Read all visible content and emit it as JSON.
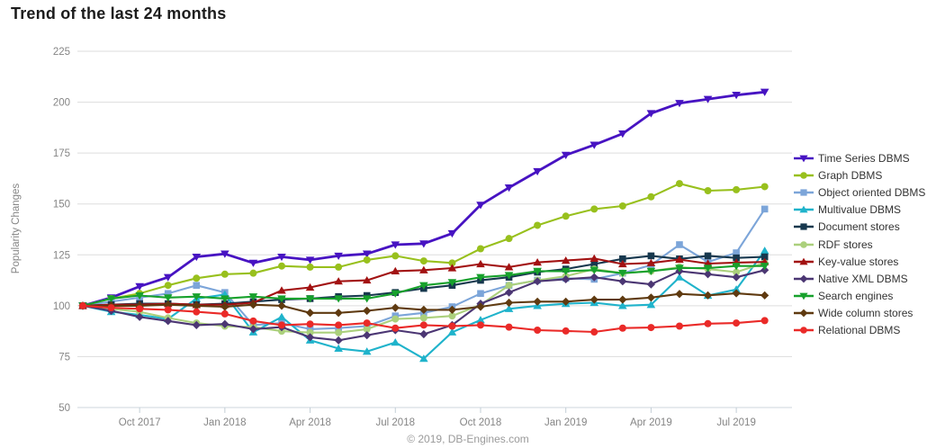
{
  "header": {
    "title": "Trend of the last 24 months"
  },
  "footer": {
    "copyright": "© 2019, DB-Engines.com"
  },
  "chart_data": {
    "type": "line",
    "title": "Trend of the last 24 months",
    "xlabel": "",
    "ylabel": "Popularity Changes",
    "ylim": [
      50,
      225
    ],
    "y_ticks": [
      225,
      200,
      175,
      150,
      125,
      100,
      75,
      50
    ],
    "grid": "horizontal",
    "legend_position": "right",
    "x_tick_labels": [
      "Oct 2017",
      "Jan 2018",
      "Apr 2018",
      "Jul 2018",
      "Oct 2018",
      "Jan 2019",
      "Apr 2019",
      "Jul 2019"
    ],
    "x_tick_indices": [
      2,
      5,
      8,
      11,
      14,
      17,
      20,
      23
    ],
    "x": [
      "Aug 2017",
      "Sep 2017",
      "Oct 2017",
      "Nov 2017",
      "Dec 2017",
      "Jan 2018",
      "Feb 2018",
      "Mar 2018",
      "Apr 2018",
      "May 2018",
      "Jun 2018",
      "Jul 2018",
      "Aug 2018",
      "Sep 2018",
      "Oct 2018",
      "Nov 2018",
      "Dec 2018",
      "Jan 2019",
      "Feb 2019",
      "Mar 2019",
      "Apr 2019",
      "May 2019",
      "Jun 2019",
      "Jul 2019",
      "Aug 2019"
    ],
    "series": [
      {
        "name": "Time Series DBMS",
        "color": "#4713c2",
        "marker": "triangle-down",
        "values": [
          100,
          104,
          109.5,
          114,
          124,
          125.5,
          121,
          124,
          122.5,
          124.5,
          125.5,
          130,
          130.5,
          135.5,
          149.5,
          158,
          166,
          174,
          179,
          184.5,
          194.5,
          199.5,
          201.5,
          203.5,
          205
        ]
      },
      {
        "name": "Graph DBMS",
        "color": "#98c01d",
        "marker": "circle",
        "values": [
          100,
          103.5,
          106,
          110,
          113.5,
          115.5,
          116,
          119.5,
          119,
          119,
          122.5,
          124.5,
          122,
          121,
          128,
          133,
          139.5,
          144,
          147.5,
          149,
          153.5,
          160,
          156.5,
          157,
          158.5
        ]
      },
      {
        "name": "Object oriented DBMS",
        "color": "#7ca5d9",
        "marker": "square",
        "values": [
          100,
          102,
          104,
          106,
          110,
          106.5,
          90.5,
          91.5,
          88.5,
          89,
          90,
          95,
          96.5,
          99.5,
          106,
          110,
          112.5,
          113.5,
          113,
          116,
          120,
          130,
          121.5,
          126,
          147.5
        ]
      },
      {
        "name": "Multivalue DBMS",
        "color": "#1fb3cb",
        "marker": "triangle-up",
        "values": [
          100,
          97,
          95.5,
          93.5,
          103.5,
          105.5,
          87,
          94.5,
          83,
          79,
          77.5,
          82,
          74,
          87,
          93,
          98.5,
          100,
          101,
          101.5,
          100,
          100.5,
          114,
          105,
          108,
          127
        ]
      },
      {
        "name": "Document stores",
        "color": "#17384e",
        "marker": "square",
        "values": [
          100,
          100.5,
          101,
          101,
          100.5,
          101,
          102,
          103,
          103.5,
          104.5,
          105,
          106.5,
          108.5,
          110,
          112.5,
          114,
          116.5,
          118,
          120.5,
          123,
          124.5,
          123,
          124.5,
          123.5,
          124
        ]
      },
      {
        "name": "RDF stores",
        "color": "#abd07c",
        "marker": "circle",
        "values": [
          100,
          98.5,
          97,
          94,
          91.5,
          90,
          89.5,
          87.5,
          86.8,
          86.8,
          88.5,
          93.5,
          94,
          95,
          100.5,
          110,
          112.5,
          114.5,
          118,
          116,
          117,
          119,
          118,
          116.5,
          121
        ]
      },
      {
        "name": "Key-value stores",
        "color": "#a21212",
        "marker": "triangle-up",
        "values": [
          100,
          100.5,
          100.5,
          101,
          100.5,
          100.5,
          101.5,
          107.5,
          109,
          112,
          112.5,
          117,
          117.5,
          118.5,
          120.5,
          119,
          121.3,
          122.2,
          123.2,
          120.5,
          121,
          122.7,
          120.7,
          121.2,
          121.5
        ]
      },
      {
        "name": "Native XML DBMS",
        "color": "#4b3673",
        "marker": "diamond",
        "values": [
          100,
          97.5,
          94.5,
          92.5,
          90.5,
          91,
          88.5,
          89.5,
          84.5,
          83,
          85.5,
          88,
          86,
          90.5,
          101,
          106.5,
          112,
          113,
          114,
          112,
          110.5,
          117,
          115.5,
          114,
          117.5
        ]
      },
      {
        "name": "Search engines",
        "color": "#17a12c",
        "marker": "triangle-down",
        "values": [
          100,
          103.5,
          105,
          104,
          104.5,
          103.5,
          104.5,
          103.5,
          103.5,
          103.5,
          103.5,
          106,
          110,
          111.5,
          114,
          115,
          117,
          117,
          117.5,
          116,
          117,
          118.5,
          118.5,
          119.5,
          119.5
        ]
      },
      {
        "name": "Wide column stores",
        "color": "#5f3a10",
        "marker": "diamond",
        "values": [
          100,
          100,
          100,
          100.5,
          100,
          99.5,
          100.5,
          100,
          96.5,
          96.5,
          97.5,
          99,
          98,
          98,
          99.5,
          101.5,
          102,
          102,
          103,
          103,
          104,
          105.8,
          105.1,
          106.1,
          105.1
        ]
      },
      {
        "name": "Relational DBMS",
        "color": "#ea2a28",
        "marker": "circle",
        "values": [
          100,
          99,
          98.5,
          98,
          97,
          96,
          92.5,
          90.5,
          91,
          90.5,
          91.5,
          89,
          90.5,
          90,
          90.5,
          89.5,
          88,
          87.6,
          87.1,
          89,
          89.3,
          90,
          91.2,
          91.5,
          92.7
        ]
      }
    ]
  }
}
